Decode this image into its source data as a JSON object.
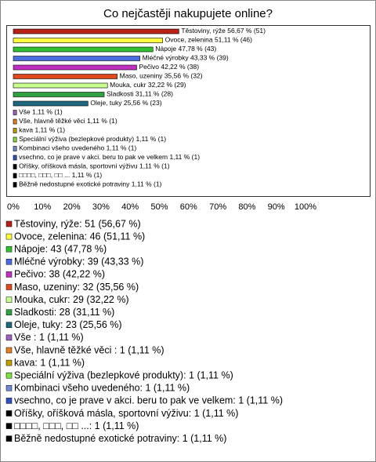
{
  "chart_data": {
    "type": "bar",
    "orientation": "horizontal",
    "title": "Co nejčastěji nakupujete online?",
    "categories": [
      "Těstoviny, rýže",
      "Ovoce, zelenina",
      "Nápoje",
      "Mléčné výrobky",
      "Pečivo",
      "Maso, uzeniny",
      "Mouka, cukr",
      "Sladkosti",
      "Oleje, tuky",
      "Vše ",
      "Vše,  hlavně těžké věci",
      "kava",
      "Speciální výživa (bezlepkové produkty)",
      "Kombinaci všeho uvedeného",
      "vsechno, co je prave v akci. beru to pak ve velkem",
      "Oříšky, oříšková másla, sportovní výživu",
      "□□□□, □□□, □□ ...",
      "Běžně nedostupné exotické potraviny"
    ],
    "values": [
      56.67,
      51.11,
      47.78,
      43.33,
      42.22,
      35.56,
      32.22,
      31.11,
      25.56,
      1.11,
      1.11,
      1.11,
      1.11,
      1.11,
      1.11,
      1.11,
      1.11,
      1.11
    ],
    "value_labels": [
      "56,67 % (51)",
      "51,11 % (46)",
      "47,78 % (43)",
      "43,33 % (39)",
      "42,22 % (38)",
      "35,56 % (32)",
      "32,22 % (29)",
      "31,11 % (28)",
      "25,56 % (23)",
      "1,11 % (1)",
      "1,11 % (1)",
      "1,11 % (1)",
      "1,11 % (1)",
      "1,11 % (1)",
      "1,11 % (1)",
      "1,11 % (1)",
      "1,11 % (1)",
      "1,11 % (1)"
    ],
    "colors": [
      "#b8201a",
      "#ffff40",
      "#30c030",
      "#4a6ee0",
      "#c030c0",
      "#e04a20",
      "#c8ff90",
      "#30a040",
      "#206880",
      "#a060c0",
      "#e08020",
      "#c0a000",
      "#80e040",
      "#7088d0",
      "#3050c0",
      "#000000",
      "#000000",
      "#000000"
    ],
    "legend": [
      "Těstoviny, rýže: 51 (56,67 %)",
      "Ovoce, zelenina: 46 (51,11 %)",
      "Nápoje: 43 (47,78 %)",
      "Mléčné výrobky: 39 (43,33 %)",
      "Pečivo: 38 (42,22 %)",
      "Maso, uzeniny: 32 (35,56 %)",
      "Mouka, cukr: 29 (32,22 %)",
      "Sladkosti: 28 (31,11 %)",
      "Oleje, tuky: 23 (25,56 %)",
      "Vše : 1 (1,11 %)",
      "Vše,  hlavně těžké věci : 1 (1,11 %)",
      "kava: 1 (1,11 %)",
      "Speciální výživa (bezlepkové produkty): 1 (1,11 %)",
      "Kombinaci všeho uvedeného: 1 (1,11 %)",
      "vsechno, co je prave v akci. beru to pak ve velkem: 1 (1,11 %)",
      "Oříšky, oříšková másla, sportovní výživu: 1 (1,11 %)",
      "□□□□, □□□, □□ ...: 1 (1,11 %)",
      "Běžně nedostupné exotické potraviny: 1 (1,11 %)"
    ],
    "xlim": [
      0,
      100
    ],
    "xticks": [
      {
        "value": 0,
        "label": "0%"
      },
      {
        "value": 10,
        "label": "10%"
      },
      {
        "value": 20,
        "label": "20%"
      },
      {
        "value": 30,
        "label": "30%"
      },
      {
        "value": 40,
        "label": "40%"
      },
      {
        "value": 50,
        "label": "50%"
      },
      {
        "value": 60,
        "label": "60%"
      },
      {
        "value": 70,
        "label": "70%"
      },
      {
        "value": 80,
        "label": "80%"
      },
      {
        "value": 90,
        "label": "90%"
      },
      {
        "value": 100,
        "label": "100%"
      }
    ]
  }
}
